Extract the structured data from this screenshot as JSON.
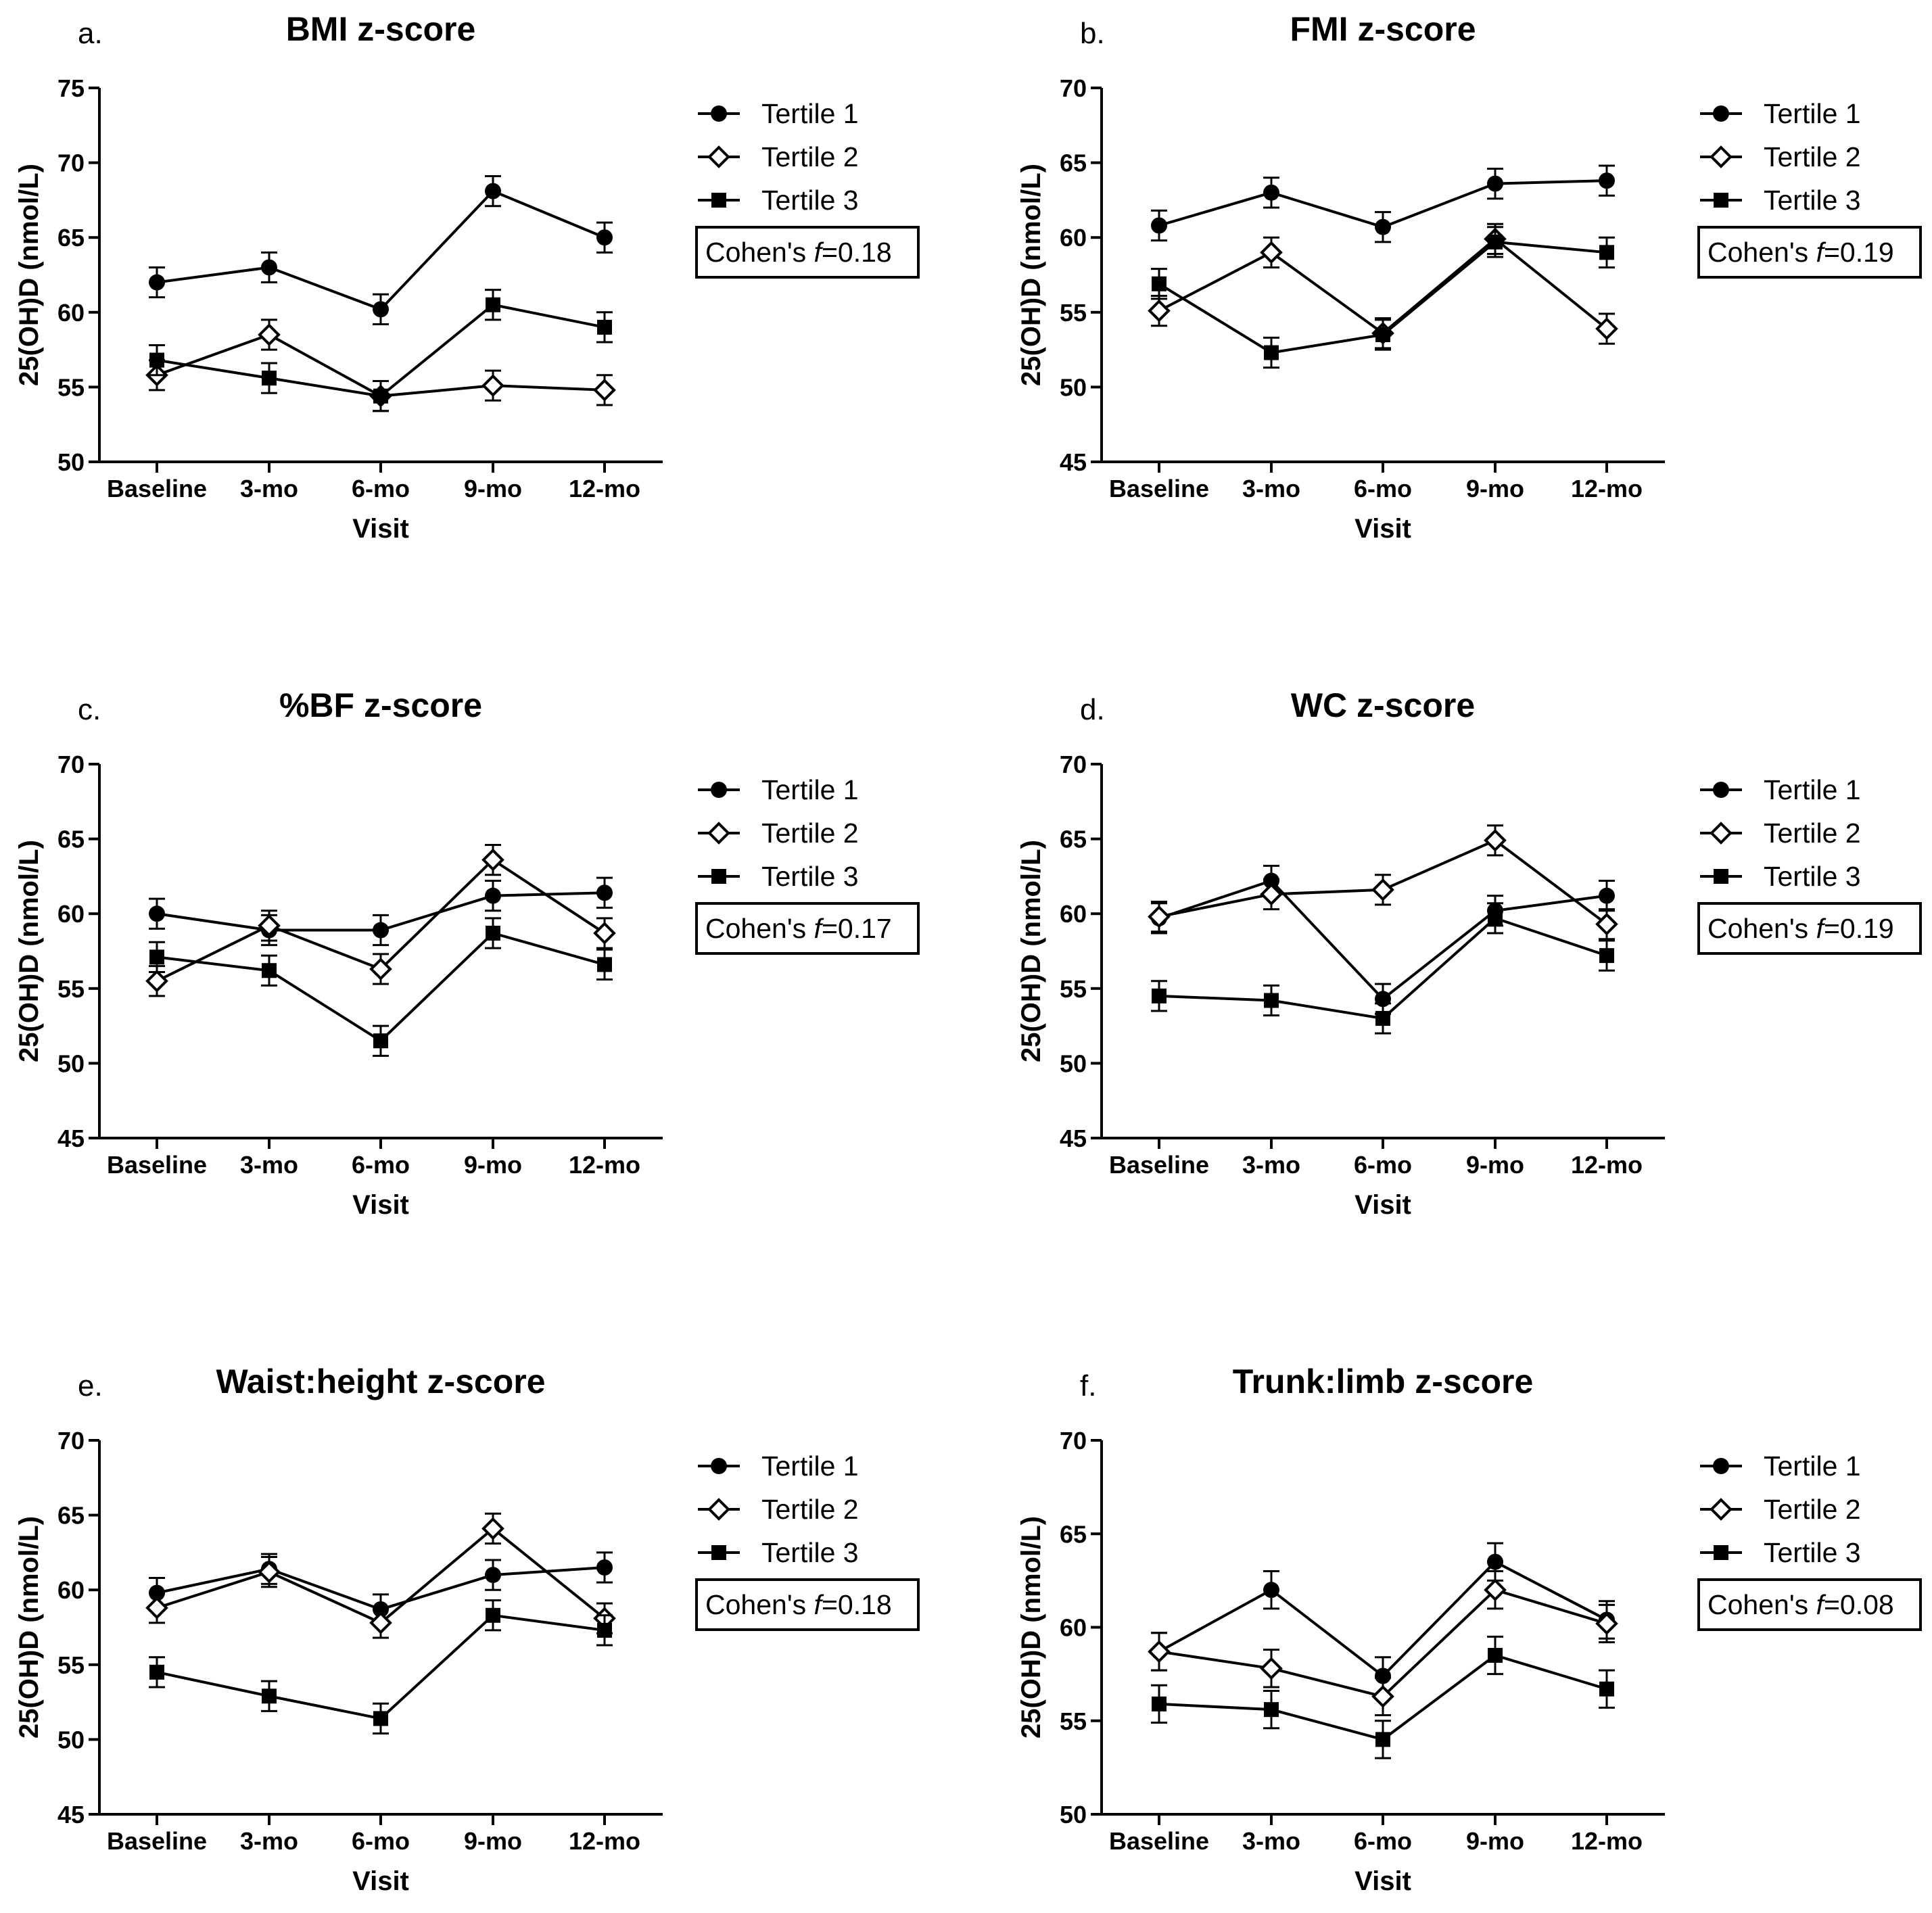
{
  "chart_data": [
    {
      "type": "line",
      "panel_label": "a.",
      "title": "BMI z-score",
      "xlabel": "Visit",
      "ylabel": "25(OH)D (nmol/L)",
      "categories": [
        "Baseline",
        "3-mo",
        "6-mo",
        "9-mo",
        "12-mo"
      ],
      "ylim": [
        50,
        75
      ],
      "yticks": [
        50,
        55,
        60,
        65,
        70,
        75
      ],
      "series": [
        {
          "name": "Tertile 1",
          "marker": "circle",
          "values": [
            62.0,
            63.0,
            60.2,
            68.1,
            65.0
          ],
          "errors": [
            1.0,
            1.0,
            1.0,
            1.0,
            1.0
          ]
        },
        {
          "name": "Tertile 2",
          "marker": "diamond-open",
          "values": [
            55.8,
            58.5,
            54.4,
            55.1,
            54.8
          ],
          "errors": [
            1.0,
            1.0,
            1.0,
            1.0,
            1.0
          ]
        },
        {
          "name": "Tertile 3",
          "marker": "square",
          "values": [
            56.8,
            55.6,
            54.4,
            60.5,
            59.0
          ],
          "errors": [
            1.0,
            1.0,
            1.0,
            1.0,
            1.0
          ]
        }
      ],
      "effect_size": {
        "prefix": "Cohen's ",
        "symbol": "f",
        "value": "=0.18"
      }
    },
    {
      "type": "line",
      "panel_label": "b.",
      "title": "FMI z-score",
      "xlabel": "Visit",
      "ylabel": "25(OH)D (nmol/L)",
      "categories": [
        "Baseline",
        "3-mo",
        "6-mo",
        "9-mo",
        "12-mo"
      ],
      "ylim": [
        45,
        70
      ],
      "yticks": [
        45,
        50,
        55,
        60,
        65,
        70
      ],
      "series": [
        {
          "name": "Tertile 1",
          "marker": "circle",
          "values": [
            60.8,
            63.0,
            60.7,
            63.6,
            63.8
          ],
          "errors": [
            1.0,
            1.0,
            1.0,
            1.0,
            1.0
          ]
        },
        {
          "name": "Tertile 2",
          "marker": "diamond-open",
          "values": [
            55.1,
            59.0,
            53.6,
            59.9,
            53.9
          ],
          "errors": [
            1.0,
            1.0,
            1.0,
            1.0,
            1.0
          ]
        },
        {
          "name": "Tertile 3",
          "marker": "square",
          "values": [
            56.9,
            52.3,
            53.5,
            59.7,
            59.0
          ],
          "errors": [
            1.0,
            1.0,
            1.0,
            1.0,
            1.0
          ]
        }
      ],
      "effect_size": {
        "prefix": "Cohen's ",
        "symbol": "f",
        "value": "=0.19"
      }
    },
    {
      "type": "line",
      "panel_label": "c.",
      "title": "%BF z-score",
      "xlabel": "Visit",
      "ylabel": "25(OH)D (nmol/L)",
      "categories": [
        "Baseline",
        "3-mo",
        "6-mo",
        "9-mo",
        "12-mo"
      ],
      "ylim": [
        45,
        70
      ],
      "yticks": [
        45,
        50,
        55,
        60,
        65,
        70
      ],
      "series": [
        {
          "name": "Tertile 1",
          "marker": "circle",
          "values": [
            60.0,
            58.9,
            58.9,
            61.2,
            61.4
          ],
          "errors": [
            1.0,
            1.0,
            1.0,
            1.0,
            1.0
          ]
        },
        {
          "name": "Tertile 2",
          "marker": "diamond-open",
          "values": [
            55.5,
            59.2,
            56.3,
            63.6,
            58.7
          ],
          "errors": [
            1.0,
            1.0,
            1.0,
            1.0,
            1.0
          ]
        },
        {
          "name": "Tertile 3",
          "marker": "square",
          "values": [
            57.1,
            56.2,
            51.5,
            58.7,
            56.6
          ],
          "errors": [
            1.0,
            1.0,
            1.0,
            1.0,
            1.0
          ]
        }
      ],
      "effect_size": {
        "prefix": "Cohen's ",
        "symbol": "f",
        "value": "=0.17"
      }
    },
    {
      "type": "line",
      "panel_label": "d.",
      "title": "WC z-score",
      "xlabel": "Visit",
      "ylabel": "25(OH)D (nmol/L)",
      "categories": [
        "Baseline",
        "3-mo",
        "6-mo",
        "9-mo",
        "12-mo"
      ],
      "ylim": [
        45,
        70
      ],
      "yticks": [
        45,
        50,
        55,
        60,
        65,
        70
      ],
      "series": [
        {
          "name": "Tertile 1",
          "marker": "circle",
          "values": [
            59.7,
            62.2,
            54.3,
            60.2,
            61.2
          ],
          "errors": [
            1.0,
            1.0,
            1.0,
            1.0,
            1.0
          ]
        },
        {
          "name": "Tertile 2",
          "marker": "diamond-open",
          "values": [
            59.8,
            61.3,
            61.6,
            64.9,
            59.3
          ],
          "errors": [
            1.0,
            1.0,
            1.0,
            1.0,
            1.0
          ]
        },
        {
          "name": "Tertile 3",
          "marker": "square",
          "values": [
            54.5,
            54.2,
            53.0,
            59.7,
            57.2
          ],
          "errors": [
            1.0,
            1.0,
            1.0,
            1.0,
            1.0
          ]
        }
      ],
      "effect_size": {
        "prefix": "Cohen's ",
        "symbol": "f",
        "value": "=0.19"
      }
    },
    {
      "type": "line",
      "panel_label": "e.",
      "title": "Waist:height z-score",
      "xlabel": "Visit",
      "ylabel": "25(OH)D (nmol/L)",
      "categories": [
        "Baseline",
        "3-mo",
        "6-mo",
        "9-mo",
        "12-mo"
      ],
      "ylim": [
        45,
        70
      ],
      "yticks": [
        45,
        50,
        55,
        60,
        65,
        70
      ],
      "series": [
        {
          "name": "Tertile 1",
          "marker": "circle",
          "values": [
            59.8,
            61.4,
            58.7,
            61.0,
            61.5
          ],
          "errors": [
            1.0,
            1.0,
            1.0,
            1.0,
            1.0
          ]
        },
        {
          "name": "Tertile 2",
          "marker": "diamond-open",
          "values": [
            58.8,
            61.2,
            57.8,
            64.1,
            58.1
          ],
          "errors": [
            1.0,
            1.0,
            1.0,
            1.0,
            1.0
          ]
        },
        {
          "name": "Tertile 3",
          "marker": "square",
          "values": [
            54.5,
            52.9,
            51.4,
            58.3,
            57.3
          ],
          "errors": [
            1.0,
            1.0,
            1.0,
            1.0,
            1.0
          ]
        }
      ],
      "effect_size": {
        "prefix": "Cohen's ",
        "symbol": "f",
        "value": "=0.18"
      }
    },
    {
      "type": "line",
      "panel_label": "f.",
      "title": "Trunk:limb z-score",
      "xlabel": "Visit",
      "ylabel": "25(OH)D (nmol/L)",
      "categories": [
        "Baseline",
        "3-mo",
        "6-mo",
        "9-mo",
        "12-mo"
      ],
      "ylim": [
        50,
        70
      ],
      "yticks": [
        50,
        55,
        60,
        65,
        70
      ],
      "series": [
        {
          "name": "Tertile 1",
          "marker": "circle",
          "values": [
            58.7,
            62.0,
            57.4,
            63.5,
            60.4
          ],
          "errors": [
            1.0,
            1.0,
            1.0,
            1.0,
            1.0
          ]
        },
        {
          "name": "Tertile 2",
          "marker": "diamond-open",
          "values": [
            58.7,
            57.8,
            56.3,
            62.0,
            60.2
          ],
          "errors": [
            1.0,
            1.0,
            1.0,
            1.0,
            1.0
          ]
        },
        {
          "name": "Tertile 3",
          "marker": "square",
          "values": [
            55.9,
            55.6,
            54.0,
            58.5,
            56.7
          ],
          "errors": [
            1.0,
            1.0,
            1.0,
            1.0,
            1.0
          ]
        }
      ],
      "effect_size": {
        "prefix": "Cohen's ",
        "symbol": "f",
        "value": "=0.08"
      }
    }
  ]
}
